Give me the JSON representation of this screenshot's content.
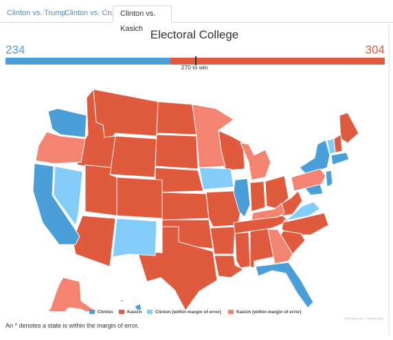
{
  "tabs": [
    {
      "label": "Clinton vs. Trump"
    },
    {
      "label": "Clinton vs. Cruz"
    },
    {
      "label": "Clinton vs. Kasich"
    }
  ],
  "chart": {
    "title": "Electoral College",
    "left_votes": "234",
    "right_votes": "304",
    "win_label": "270 to win",
    "total": 538,
    "segments": [
      {
        "party": "Clinton",
        "votes": 234,
        "color": "#4a9fd8"
      },
      {
        "party": "Kasich",
        "votes": 304,
        "color": "#e05a3e"
      }
    ]
  },
  "colors": {
    "clinton": "#4a9fd8",
    "kasich": "#e05a3e",
    "clinton_moe": "#82cdf9",
    "kasich_moe": "#f48472"
  },
  "legend": [
    {
      "label": "Clinton",
      "color": "#4a9fd8"
    },
    {
      "label": "Kasich",
      "color": "#e05a3e"
    },
    {
      "label": "Clinton (within margin of error)",
      "color": "#82cdf9"
    },
    {
      "label": "Kasich (within margin of error)",
      "color": "#f48472"
    }
  ],
  "credit": "Highcharts.com © Natural Earth",
  "footnote": "An * denotes a state is within the margin of error."
}
